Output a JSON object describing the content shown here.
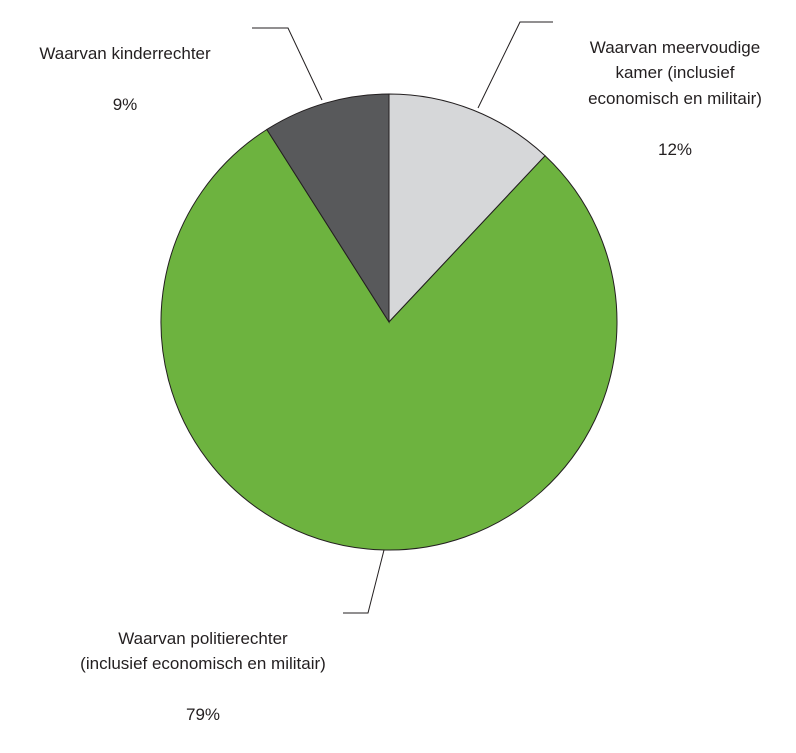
{
  "chart_data": {
    "type": "pie",
    "categories": [
      "Waarvan meervoudige\nkamer (inclusief\neconomisch en militair)",
      "Waarvan politierechter\n(inclusief economisch en militair)",
      "Waarvan kinderrechter"
    ],
    "values": [
      12,
      79,
      9
    ],
    "value_labels": [
      "12%",
      "79%",
      "9%"
    ],
    "colors": [
      "#d6d7d9",
      "#6db33f",
      "#58595b"
    ]
  }
}
